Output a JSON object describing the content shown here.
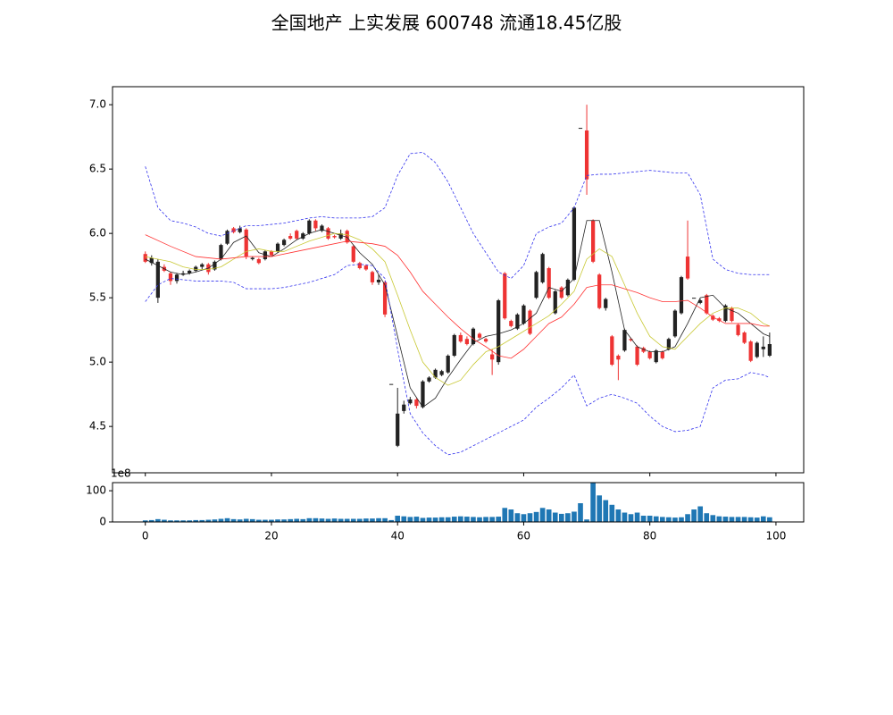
{
  "chart_data": [
    {
      "type": "candlestick",
      "title": "全国地产 上实发展 600748 流通18.45亿股",
      "xlim": [
        -5.2,
        104.4
      ],
      "xticks": [
        0,
        20,
        40,
        60,
        80,
        100
      ],
      "ylim": [
        4.14,
        7.14
      ],
      "yticks": [
        4.5,
        {
          "value": 5,
          "label": "5.0"
        },
        5.5,
        {
          "value": 6,
          "label": "6.0"
        },
        6.5,
        {
          "value": 7,
          "label": "7.0"
        }
      ],
      "up_color": "#222222",
      "down_color": "#ee3333",
      "open": [
        5.84,
        5.77,
        5.5,
        5.74,
        5.69,
        5.63,
        5.68,
        5.69,
        5.71,
        5.74,
        5.76,
        5.72,
        5.8,
        5.92,
        6.04,
        6.01,
        6.03,
        5.8,
        5.8,
        5.8,
        5.86,
        5.86,
        5.91,
        5.98,
        6.02,
        5.96,
        6.0,
        6.1,
        6.02,
        6.04,
        5.98,
        5.96,
        6.02,
        5.9,
        5.77,
        5.75,
        5.7,
        5.62,
        5.62,
        4.83,
        4.35,
        4.62,
        4.68,
        4.71,
        4.65,
        4.85,
        4.88,
        4.9,
        4.92,
        5.05,
        5.21,
        5.18,
        5.14,
        5.22,
        5.18,
        5.06,
        5.0,
        5.69,
        5.32,
        5.26,
        5.3,
        5.4,
        5.5,
        5.62,
        5.73,
        5.38,
        5.58,
        5.52,
        5.64,
        6.82,
        6.8,
        6.1,
        5.68,
        5.42,
        5.2,
        5.05,
        5.09,
        5.18,
        5.12,
        5.11,
        5.08,
        5.0,
        5.08,
        5.1,
        5.2,
        5.38,
        5.82,
        5.5,
        5.46,
        5.52,
        5.36,
        5.34,
        5.32,
        5.42,
        5.29,
        5.23,
        5.16,
        5.04,
        5.1,
        5.05
      ],
      "high": [
        5.86,
        5.83,
        5.8,
        5.76,
        5.7,
        5.69,
        5.71,
        5.72,
        5.75,
        5.77,
        5.77,
        5.79,
        5.92,
        6.03,
        6.05,
        6.06,
        6.04,
        5.82,
        5.81,
        5.87,
        5.87,
        5.93,
        5.96,
        6.0,
        6.03,
        6.01,
        6.11,
        6.11,
        6.07,
        6.05,
        5.99,
        6.03,
        6.03,
        5.91,
        5.78,
        5.76,
        5.71,
        5.68,
        5.63,
        4.83,
        4.8,
        4.7,
        4.73,
        4.72,
        4.86,
        4.89,
        4.95,
        4.94,
        5.06,
        5.22,
        5.23,
        5.2,
        5.27,
        5.23,
        5.19,
        5.1,
        5.49,
        5.7,
        5.33,
        5.38,
        5.45,
        5.41,
        5.71,
        5.85,
        5.74,
        5.56,
        5.59,
        5.65,
        6.21,
        6.82,
        7.0,
        6.11,
        5.69,
        5.5,
        5.21,
        5.06,
        5.26,
        5.19,
        5.13,
        5.12,
        5.09,
        5.1,
        5.09,
        5.19,
        5.41,
        5.67,
        6.1,
        5.5,
        5.49,
        5.53,
        5.37,
        5.35,
        5.45,
        5.43,
        5.3,
        5.24,
        5.17,
        5.16,
        5.2,
        5.23
      ],
      "low": [
        5.77,
        5.75,
        5.46,
        5.7,
        5.6,
        5.61,
        5.67,
        5.68,
        5.7,
        5.72,
        5.68,
        5.71,
        5.79,
        5.91,
        6.0,
        6.0,
        5.8,
        5.79,
        5.76,
        5.79,
        5.82,
        5.85,
        5.9,
        5.95,
        5.95,
        5.95,
        5.99,
        6.02,
        6.01,
        5.95,
        5.96,
        5.95,
        5.92,
        5.77,
        5.72,
        5.71,
        5.6,
        5.6,
        5.35,
        4.83,
        4.34,
        4.6,
        4.67,
        4.64,
        4.64,
        4.84,
        4.87,
        4.89,
        4.91,
        5.04,
        5.15,
        5.13,
        5.13,
        5.18,
        5.15,
        4.9,
        4.98,
        5.33,
        5.27,
        5.25,
        5.29,
        5.21,
        5.49,
        5.61,
        5.49,
        5.37,
        5.49,
        5.51,
        5.63,
        6.82,
        6.3,
        5.77,
        5.41,
        5.4,
        4.97,
        4.86,
        5.08,
        5.16,
        4.97,
        5.07,
        5.02,
        4.99,
        5.02,
        5.09,
        5.19,
        5.37,
        5.64,
        5.5,
        5.45,
        5.37,
        5.32,
        5.31,
        5.31,
        5.31,
        5.2,
        5.14,
        5.0,
        5.03,
        5.04,
        5.04
      ],
      "close": [
        5.78,
        5.81,
        5.78,
        5.71,
        5.63,
        5.68,
        5.69,
        5.71,
        5.74,
        5.76,
        5.7,
        5.78,
        5.91,
        6.02,
        6.01,
        6.04,
        5.82,
        5.81,
        5.77,
        5.86,
        5.83,
        5.92,
        5.95,
        5.96,
        5.96,
        6.0,
        6.1,
        6.04,
        6.06,
        5.96,
        5.97,
        6.0,
        5.93,
        5.78,
        5.73,
        5.72,
        5.62,
        5.64,
        5.37,
        4.83,
        4.6,
        4.67,
        4.71,
        4.66,
        4.85,
        4.88,
        4.94,
        4.93,
        5.05,
        5.21,
        5.16,
        5.14,
        5.26,
        5.19,
        5.16,
        5.02,
        5.48,
        5.34,
        5.28,
        5.37,
        5.44,
        5.22,
        5.7,
        5.84,
        5.5,
        5.55,
        5.5,
        5.64,
        6.2,
        6.82,
        6.42,
        5.78,
        5.42,
        5.49,
        4.98,
        5.02,
        5.25,
        5.17,
        4.98,
        5.08,
        5.03,
        5.09,
        5.03,
        5.18,
        5.4,
        5.66,
        5.65,
        5.5,
        5.48,
        5.38,
        5.33,
        5.32,
        5.44,
        5.32,
        5.21,
        5.15,
        5.01,
        5.15,
        5.12,
        5.14
      ],
      "lines": [
        {
          "color": "#222222",
          "dashed": false,
          "x": [
            0,
            2,
            4,
            6,
            8,
            10,
            12,
            14,
            16,
            18,
            20,
            22,
            24,
            26,
            28,
            30,
            32,
            34,
            36,
            38,
            40,
            42,
            44,
            46,
            48,
            50,
            52,
            54,
            56,
            58,
            60,
            62,
            64,
            66,
            68,
            70,
            72,
            74,
            76,
            78,
            80,
            82,
            84,
            86,
            88,
            90,
            92,
            94,
            96,
            98,
            99
          ],
          "values": [
            5.8,
            5.75,
            5.7,
            5.68,
            5.7,
            5.73,
            5.8,
            5.93,
            5.98,
            5.85,
            5.82,
            5.88,
            5.95,
            6.0,
            6.03,
            6.0,
            5.97,
            5.85,
            5.76,
            5.6,
            5.2,
            4.8,
            4.65,
            4.72,
            4.88,
            5.02,
            5.15,
            5.2,
            5.22,
            5.25,
            5.3,
            5.38,
            5.58,
            5.55,
            5.65,
            6.1,
            6.1,
            5.7,
            5.25,
            5.12,
            5.08,
            5.08,
            5.12,
            5.3,
            5.5,
            5.52,
            5.42,
            5.38,
            5.3,
            5.22,
            5.2
          ]
        },
        {
          "color": "#c8c832",
          "dashed": false,
          "x": [
            0,
            2,
            4,
            6,
            8,
            10,
            12,
            14,
            16,
            18,
            20,
            22,
            24,
            26,
            28,
            30,
            32,
            34,
            36,
            38,
            40,
            42,
            44,
            46,
            48,
            50,
            52,
            54,
            56,
            58,
            60,
            62,
            64,
            66,
            68,
            70,
            72,
            74,
            76,
            78,
            80,
            82,
            84,
            86,
            88,
            90,
            92,
            94,
            96,
            98,
            99
          ],
          "values": [
            5.82,
            5.8,
            5.78,
            5.74,
            5.72,
            5.72,
            5.74,
            5.8,
            5.86,
            5.88,
            5.86,
            5.86,
            5.9,
            5.94,
            5.97,
            6.0,
            5.99,
            5.95,
            5.88,
            5.78,
            5.52,
            5.25,
            5.0,
            4.88,
            4.82,
            4.86,
            4.98,
            5.08,
            5.12,
            5.18,
            5.24,
            5.3,
            5.36,
            5.45,
            5.55,
            5.8,
            5.88,
            5.82,
            5.6,
            5.38,
            5.2,
            5.12,
            5.1,
            5.2,
            5.3,
            5.38,
            5.42,
            5.42,
            5.38,
            5.3,
            5.28
          ]
        },
        {
          "color": "#ff3333",
          "dashed": false,
          "x": [
            0,
            4,
            8,
            12,
            16,
            20,
            24,
            28,
            32,
            36,
            38,
            40,
            42,
            44,
            46,
            48,
            50,
            52,
            54,
            56,
            58,
            60,
            62,
            64,
            66,
            68,
            70,
            72,
            74,
            76,
            78,
            80,
            82,
            84,
            86,
            88,
            90,
            92,
            94,
            96,
            98,
            99
          ],
          "values": [
            5.99,
            5.9,
            5.82,
            5.8,
            5.82,
            5.82,
            5.86,
            5.9,
            5.94,
            5.92,
            5.9,
            5.83,
            5.7,
            5.55,
            5.45,
            5.35,
            5.26,
            5.18,
            5.12,
            5.05,
            5.03,
            5.1,
            5.2,
            5.3,
            5.35,
            5.45,
            5.58,
            5.6,
            5.6,
            5.57,
            5.54,
            5.5,
            5.47,
            5.47,
            5.48,
            5.42,
            5.35,
            5.3,
            5.3,
            5.3,
            5.28,
            5.28
          ]
        },
        {
          "color": "#3333ee",
          "dashed": true,
          "x": [
            0,
            2,
            4,
            6,
            8,
            10,
            12,
            14,
            16,
            18,
            20,
            22,
            24,
            26,
            28,
            30,
            32,
            34,
            36,
            38,
            40,
            42,
            44,
            46,
            48,
            50,
            52,
            54,
            56,
            58,
            60,
            62,
            64,
            66,
            68,
            70,
            72,
            74,
            76,
            78,
            80,
            82,
            84,
            86,
            88,
            90,
            92,
            94,
            96,
            98,
            99
          ],
          "values": [
            6.52,
            6.2,
            6.1,
            6.08,
            6.05,
            6.0,
            5.98,
            6.02,
            6.06,
            6.06,
            6.07,
            6.08,
            6.1,
            6.12,
            6.13,
            6.12,
            6.12,
            6.12,
            6.13,
            6.2,
            6.45,
            6.62,
            6.63,
            6.55,
            6.4,
            6.2,
            6.0,
            5.85,
            5.7,
            5.65,
            5.75,
            6.0,
            6.05,
            6.08,
            6.2,
            6.45,
            6.46,
            6.46,
            6.47,
            6.48,
            6.49,
            6.48,
            6.47,
            6.47,
            6.3,
            5.8,
            5.72,
            5.69,
            5.68,
            5.68,
            5.68
          ]
        },
        {
          "color": "#3333ee",
          "dashed": true,
          "x": [
            0,
            2,
            4,
            6,
            8,
            10,
            12,
            14,
            16,
            18,
            20,
            22,
            24,
            26,
            28,
            30,
            32,
            34,
            36,
            38,
            40,
            42,
            44,
            46,
            48,
            50,
            52,
            54,
            56,
            58,
            60,
            62,
            64,
            66,
            68,
            70,
            72,
            74,
            76,
            78,
            80,
            82,
            84,
            86,
            88,
            90,
            92,
            94,
            96,
            98,
            99
          ],
          "values": [
            5.47,
            5.6,
            5.65,
            5.64,
            5.63,
            5.63,
            5.63,
            5.62,
            5.57,
            5.57,
            5.57,
            5.58,
            5.6,
            5.62,
            5.65,
            5.68,
            5.75,
            5.76,
            5.75,
            5.65,
            5.1,
            4.6,
            4.45,
            4.35,
            4.28,
            4.3,
            4.35,
            4.4,
            4.45,
            4.5,
            4.55,
            4.65,
            4.72,
            4.8,
            4.9,
            4.66,
            4.72,
            4.75,
            4.72,
            4.68,
            4.58,
            4.5,
            4.46,
            4.47,
            4.5,
            4.8,
            4.86,
            4.87,
            4.92,
            4.9,
            4.88
          ]
        }
      ]
    },
    {
      "type": "bar",
      "offset_label": "1e8",
      "color": "#1f77b4",
      "xlim": [
        -5.2,
        104.4
      ],
      "xticks": [
        0,
        20,
        40,
        60,
        80,
        100
      ],
      "ylim": [
        0,
        126
      ],
      "yticks": [
        0,
        100
      ],
      "values": [
        5,
        6,
        9,
        7,
        5,
        5,
        5,
        5,
        6,
        6,
        7,
        8,
        10,
        12,
        9,
        8,
        10,
        9,
        7,
        7,
        7,
        8,
        8,
        9,
        10,
        9,
        12,
        12,
        11,
        10,
        11,
        10,
        10,
        10,
        10,
        11,
        11,
        12,
        12,
        6,
        20,
        18,
        16,
        17,
        13,
        14,
        14,
        15,
        15,
        17,
        18,
        17,
        16,
        15,
        16,
        16,
        17,
        45,
        40,
        28,
        25,
        28,
        32,
        45,
        40,
        30,
        26,
        28,
        33,
        60,
        8,
        125,
        85,
        70,
        55,
        40,
        30,
        25,
        30,
        20,
        20,
        18,
        16,
        15,
        14,
        15,
        25,
        40,
        50,
        28,
        22,
        18,
        17,
        16,
        16,
        16,
        15,
        14,
        18,
        15
      ]
    }
  ]
}
